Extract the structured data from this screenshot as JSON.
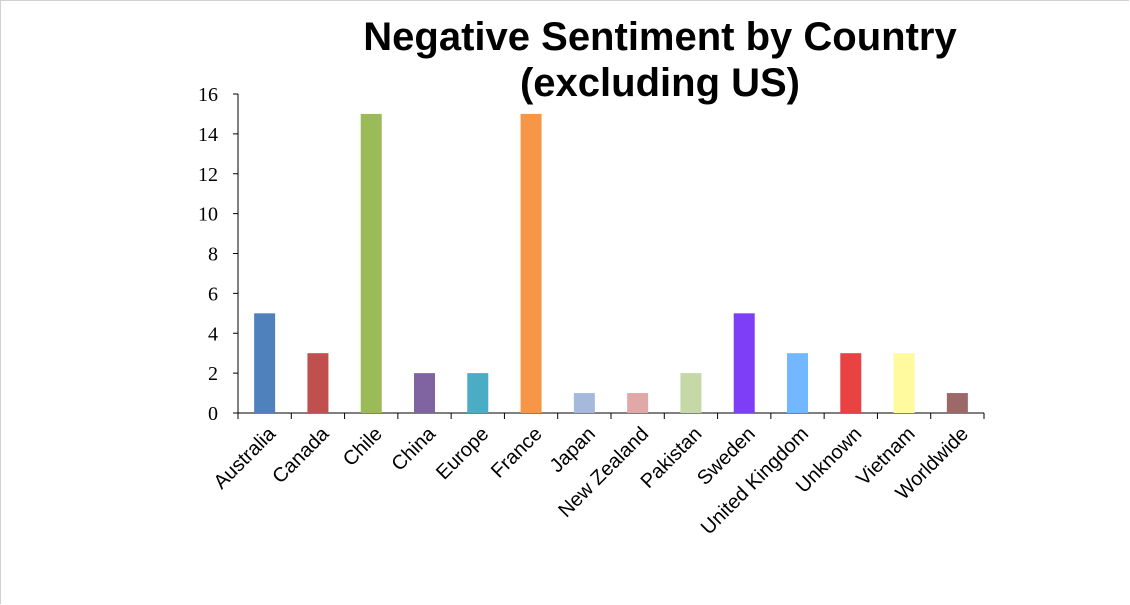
{
  "chart_data": {
    "type": "bar",
    "title_lines": [
      "Negative Sentiment by Country",
      "(excluding US)"
    ],
    "xlabel": "",
    "ylabel": "",
    "ylim": [
      0,
      16
    ],
    "yticks": [
      "0",
      "2",
      "4",
      "6",
      "8",
      "10",
      "12",
      "14",
      "16"
    ],
    "grid": false,
    "legend": "none",
    "categories": [
      "Australia",
      "Canada",
      "Chile",
      "China",
      "Europe",
      "France",
      "Japan",
      "New Zealand",
      "Pakistan",
      "Sweden",
      "United Kingdom",
      "Unknown",
      "Vietnam",
      "Worldwide"
    ],
    "values": [
      5,
      3,
      15,
      2,
      2,
      15,
      1,
      1,
      2,
      5,
      3,
      3,
      3,
      1
    ],
    "colors": [
      "#4f81bd",
      "#c0504d",
      "#9bbb59",
      "#8064a2",
      "#4bacc6",
      "#f79646",
      "#a5b9dd",
      "#e0a8a6",
      "#c6d8a6",
      "#7e3ef7",
      "#72b7ff",
      "#e84242",
      "#fffa9e",
      "#9c6868"
    ]
  }
}
